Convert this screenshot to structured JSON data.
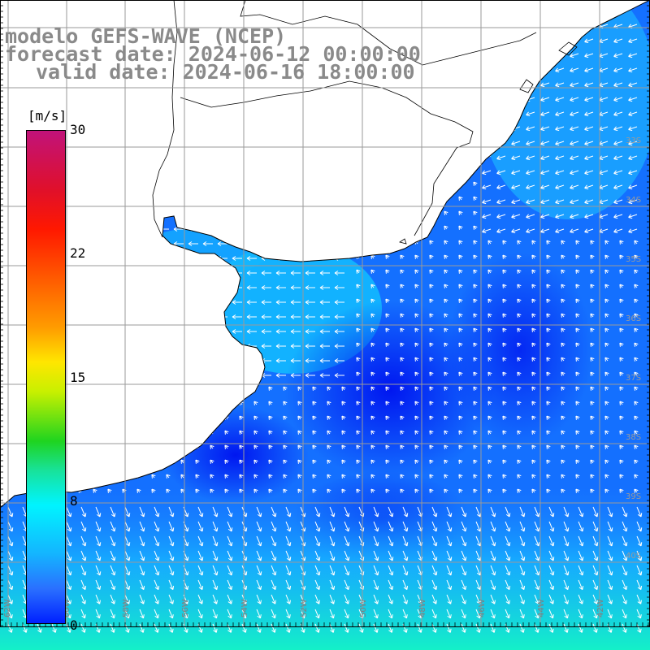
{
  "header": {
    "line1": "modelo GEFS-WAVE (NCEP)",
    "line2": "forecast date: 2024-06-12 00:00:00",
    "line3": "valid date: 2024-06-16 18:00:00"
  },
  "colorbar": {
    "unit": "[m/s]",
    "ticks": [
      "30",
      "22",
      "15",
      "8",
      "0"
    ]
  },
  "map": {
    "lat_labels": [
      "33S",
      "34S",
      "35S",
      "36S",
      "37S",
      "38S",
      "39S",
      "40S"
    ],
    "lon_labels": [
      "62W",
      "60W",
      "58W",
      "56W",
      "54W",
      "52W",
      "50W",
      "48W",
      "46W",
      "44W",
      "42W"
    ],
    "colors": {
      "land": "#ffffff",
      "coast": "#000000",
      "grid": "#9a9a9a",
      "arrow": "#ffffff"
    }
  }
}
